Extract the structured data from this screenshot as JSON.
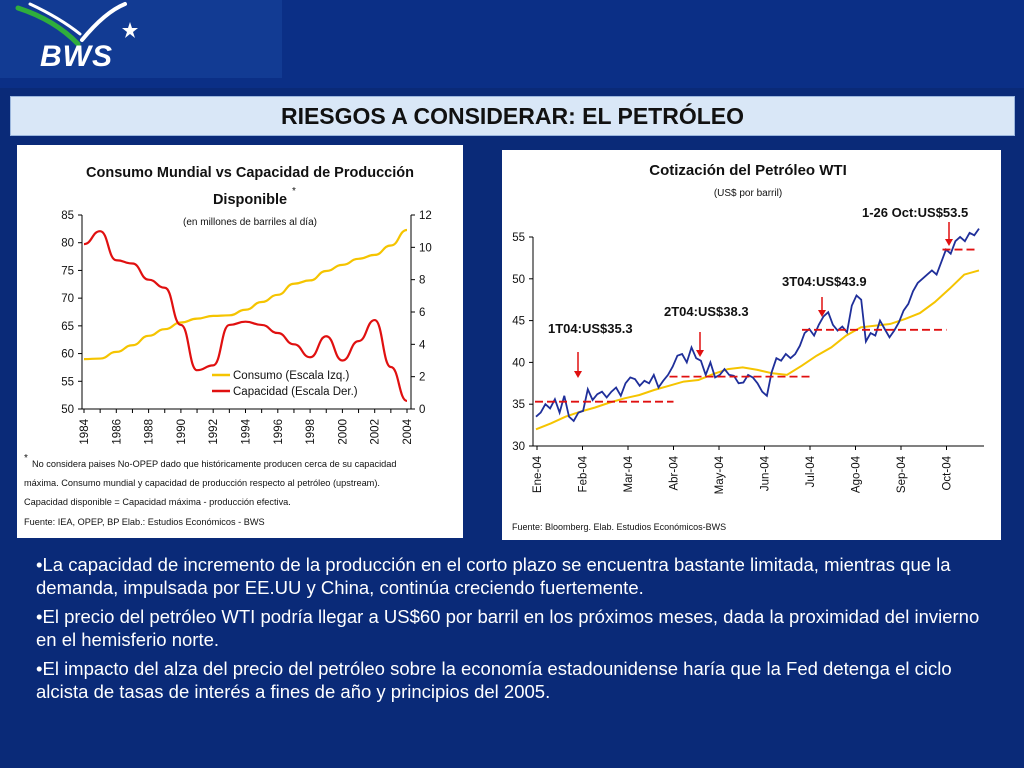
{
  "header": {
    "logo_text": "BWS"
  },
  "slide_title": "RIESGOS A CONSIDERAR: EL PETRÓLEO",
  "colors": {
    "consumo": "#f5c400",
    "capacidad": "#e01010",
    "wti": "#1f2f9a",
    "wti_avg": "#f5c400",
    "annotation": "#e01010"
  },
  "chart_left": {
    "title_line1": "Consumo Mundial vs Capacidad de Producción",
    "title_line2": "Disponible",
    "title_mark": "*",
    "subtitle": "(en millones de barriles al día)",
    "legend": [
      "Consumo (Escala Izq.)",
      "Capacidad (Escala Der.)"
    ],
    "footnote_mark": "*",
    "footnotes": [
      "No considera paises No-OPEP dado que históricamente producen cerca de su capacidad",
      "máxima. Consumo mundial y capacidad de producción respecto al petróleo (upstream).",
      "Capacidad disponible = Capacidad máxima - producción efectiva.",
      "Fuente: IEA, OPEP, BP   Elab.: Estudios Económicos - BWS"
    ]
  },
  "chart_right": {
    "title": "Cotización del Petróleo WTI",
    "subtitle": "(US$ por barril)",
    "annotations": [
      "1T04:US$35.3",
      "2T04:US$38.3",
      "3T04:US$43.9",
      "1-26 Oct:US$53.5"
    ],
    "source": "Fuente: Bloomberg. Elab. Estudios Económicos-BWS"
  },
  "chart_data": [
    {
      "type": "line",
      "title": "Consumo Mundial vs Capacidad de Producción Disponible",
      "subtitle": "(en millones de barriles al día)",
      "x": [
        1984,
        1985,
        1986,
        1987,
        1988,
        1989,
        1990,
        1991,
        1992,
        1993,
        1994,
        1995,
        1996,
        1997,
        1998,
        1999,
        2000,
        2001,
        2002,
        2003,
        2004
      ],
      "x_ticks": [
        "1984",
        "1986",
        "1988",
        "1990",
        "1992",
        "1994",
        "1996",
        "1998",
        "2000",
        "2002",
        "2004"
      ],
      "y_left": {
        "range": [
          50,
          85
        ],
        "ticks": [
          "50",
          "55",
          "60",
          "65",
          "70",
          "75",
          "80",
          "85"
        ]
      },
      "y_right": {
        "range": [
          0,
          12
        ],
        "ticks": [
          "0",
          "2",
          "4",
          "6",
          "8",
          "10",
          "12"
        ]
      },
      "series": [
        {
          "name": "Consumo (Escala Izq.)",
          "axis": "left",
          "values": [
            59,
            59.1,
            60.3,
            61.5,
            63.2,
            64.4,
            65.6,
            66.3,
            66.8,
            66.9,
            67.9,
            69.3,
            70.6,
            72.6,
            73.2,
            74.9,
            76.0,
            77.1,
            77.8,
            79.5,
            82.3
          ]
        },
        {
          "name": "Capacidad (Escala Der.)",
          "axis": "right",
          "values": [
            10.2,
            11.0,
            9.2,
            9.0,
            8.0,
            7.5,
            5.2,
            2.4,
            2.7,
            5.2,
            5.4,
            5.2,
            4.7,
            4.0,
            3.2,
            4.5,
            3.0,
            4.2,
            5.5,
            2.6,
            0.5
          ]
        }
      ],
      "legend_position": "bottom-right"
    },
    {
      "type": "line",
      "title": "Cotización del Petróleo WTI",
      "subtitle": "(US$ por barril)",
      "x_ticks": [
        "Ene-04",
        "Feb-04",
        "Mar-04",
        "Abr-04",
        "May-04",
        "Jun-04",
        "Jul-04",
        "Ago-04",
        "Sep-04",
        "Oct-04"
      ],
      "y_range": [
        30,
        55
      ],
      "y_ticks": [
        "30",
        "35",
        "40",
        "45",
        "50",
        "55"
      ],
      "series": [
        {
          "values": [
            33.5,
            34,
            35,
            34.5,
            35.6,
            34,
            36,
            33.5,
            33,
            34,
            34.2,
            36.8,
            35.5,
            36.2,
            36.5,
            35.8,
            36.5,
            37,
            36,
            37.5,
            38.2,
            38,
            37.2,
            37.8,
            37.5,
            38.5,
            37,
            37.8,
            38.5,
            39.5,
            40.8,
            41,
            40,
            41.8,
            40.5,
            40.2,
            38.5,
            40,
            38.2,
            38.5,
            39.2,
            38.5,
            38.4,
            37.5,
            37.6,
            38.5,
            38.2,
            37.5,
            36.5,
            36,
            38.8,
            40.5,
            40.2,
            41,
            40.5,
            41,
            42,
            43.5,
            44,
            43.2,
            44.5,
            45.5,
            46,
            44.5,
            43.8,
            44.3,
            43.6,
            46.8,
            48,
            47.5,
            42.5,
            43.5,
            43.2,
            45,
            44,
            43,
            43.8,
            44.8,
            46.2,
            47,
            48.5,
            49.5,
            50,
            50.5,
            51,
            50.5,
            52,
            53.5,
            53,
            54.5,
            55,
            54.5,
            55.5,
            55.2,
            56
          ]
        },
        {
          "values": [
            32,
            32.7,
            33.5,
            34.1,
            34.6,
            35.2,
            35.7,
            36.1,
            36.7,
            37.2,
            37.7,
            37.9,
            38.6,
            39.2,
            39.4,
            39.1,
            38.7,
            38.5,
            39.6,
            40.8,
            41.8,
            43.2,
            44.2,
            44.4,
            44.6,
            45.2,
            45.9,
            47.2,
            48.8,
            50.5,
            51
          ]
        }
      ],
      "averages": [
        {
          "label": "1T04:US$35.3",
          "value": 35.3
        },
        {
          "label": "2T04:US$38.3",
          "value": 38.3
        },
        {
          "label": "3T04:US$43.9",
          "value": 43.9
        },
        {
          "label": "1-26 Oct:US$53.5",
          "value": 53.5
        }
      ]
    }
  ],
  "bullets": [
    "•La capacidad de incremento de la producción en el corto plazo se encuentra bastante limitada, mientras que la demanda, impulsada por EE.UU y China, continúa creciendo fuertemente.",
    "•El precio del petróleo WTI podría llegar a US$60 por barril en los próximos meses, dada la proximidad del invierno en el hemisferio norte.",
    "•El impacto del alza del precio del petróleo sobre la economía estadounidense haría que la Fed detenga el ciclo alcista de tasas de interés a fines de año y principios del 2005."
  ]
}
